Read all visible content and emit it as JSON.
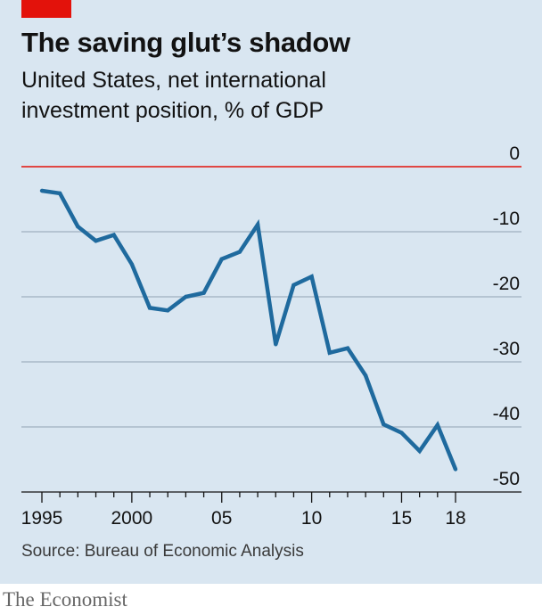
{
  "header": {
    "title": "The saving glut’s shadow",
    "subtitle": "United States, net international investment position, % of GDP"
  },
  "footer": {
    "source": "Source: Bureau of Economic Analysis",
    "brand": "The Economist"
  },
  "colors": {
    "background": "#d9e6f1",
    "accent_red": "#e3120b",
    "line": "#1f6a9e",
    "grid": "#b5c4d2",
    "zero_line": "#e3120b"
  },
  "chart_data": {
    "type": "line",
    "title": "The saving glut’s shadow",
    "subtitle": "United States, net international investment position, % of GDP",
    "xlabel": "",
    "ylabel": "",
    "xlim": [
      1995,
      2018
    ],
    "ylim": [
      -50,
      0
    ],
    "grid": true,
    "y_axis_side": "right",
    "x_ticks": [
      {
        "value": 1995,
        "label": "1995"
      },
      {
        "value": 2000,
        "label": "2000"
      },
      {
        "value": 2005,
        "label": "05"
      },
      {
        "value": 2010,
        "label": "10"
      },
      {
        "value": 2015,
        "label": "15"
      },
      {
        "value": 2018,
        "label": "18"
      }
    ],
    "y_ticks": [
      {
        "value": 0,
        "label": "0"
      },
      {
        "value": -10,
        "label": "-10"
      },
      {
        "value": -20,
        "label": "-20"
      },
      {
        "value": -30,
        "label": "-30"
      },
      {
        "value": -40,
        "label": "-40"
      },
      {
        "value": -50,
        "label": "-50"
      }
    ],
    "x": [
      1995,
      1996,
      1997,
      1998,
      1999,
      2000,
      2001,
      2002,
      2003,
      2004,
      2005,
      2006,
      2007,
      2008,
      2009,
      2010,
      2011,
      2012,
      2013,
      2014,
      2015,
      2016,
      2017,
      2018
    ],
    "series": [
      {
        "values": [
          -3.7,
          -4.1,
          -9.2,
          -11.4,
          -10.5,
          -15.0,
          -21.7,
          -22.1,
          -20.0,
          -19.4,
          -14.2,
          -13.1,
          -8.9,
          -27.3,
          -18.2,
          -16.9,
          -28.6,
          -27.9,
          -32.1,
          -39.6,
          -40.9,
          -43.7,
          -39.7,
          -46.5
        ]
      }
    ]
  }
}
